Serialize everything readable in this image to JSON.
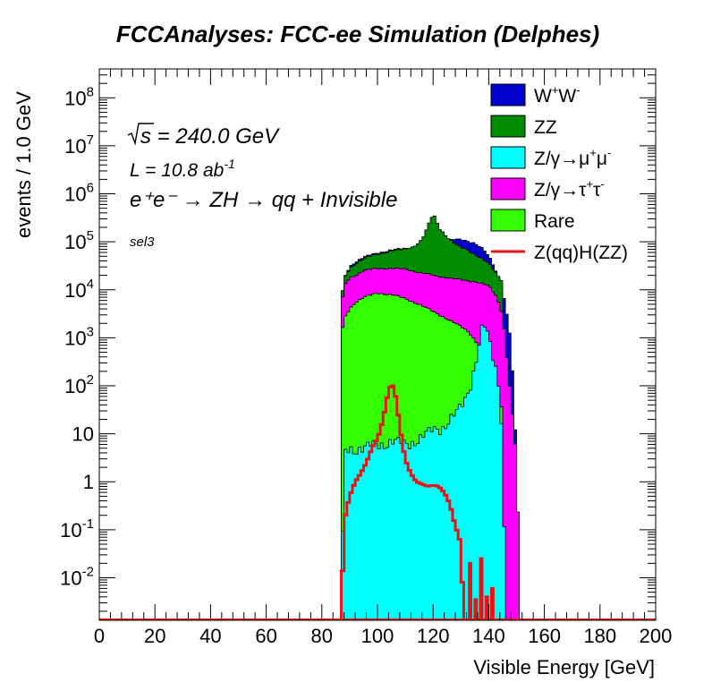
{
  "chart_data": {
    "type": "area",
    "title": "FCCAnalyses: FCC-ee Simulation (Delphes)",
    "xlabel": "Visible Energy [GeV]",
    "ylabel": "events / 1.0 GeV",
    "xlim": [
      0,
      200
    ],
    "ylim": [
      0.0013,
      400000000
    ],
    "ylog": true,
    "stacked": true,
    "legend_position": "top-right",
    "x_ticks": [
      "0",
      "20",
      "40",
      "60",
      "80",
      "100",
      "120",
      "140",
      "160",
      "180",
      "200"
    ],
    "y_ticks": [
      {
        "base": "10",
        "exp": "-2",
        "value": 0.01
      },
      {
        "base": "10",
        "exp": "-1",
        "value": 0.1
      },
      {
        "base": "1",
        "exp": "",
        "value": 1
      },
      {
        "base": "10",
        "exp": "",
        "value": 10
      },
      {
        "base": "10",
        "exp": "2",
        "value": 100
      },
      {
        "base": "10",
        "exp": "3",
        "value": 1000
      },
      {
        "base": "10",
        "exp": "4",
        "value": 10000
      },
      {
        "base": "10",
        "exp": "5",
        "value": 100000
      },
      {
        "base": "10",
        "exp": "6",
        "value": 1000000
      },
      {
        "base": "10",
        "exp": "7",
        "value": 10000000
      },
      {
        "base": "10",
        "exp": "8",
        "value": 100000000
      }
    ],
    "annotations": {
      "sqrt_s": "s = 240.0 GeV",
      "lumi": "L = 10.8 ab",
      "lumi_exp": "-1",
      "process": "e⁺e⁻ → ZH → qq + Invisible",
      "selection": "sel3"
    },
    "stack_totals": [
      {
        "name": "Rare",
        "color": "#33ff00",
        "x": [
          87,
          88,
          90,
          92,
          95,
          100,
          105,
          110,
          115,
          120,
          125,
          130,
          133,
          135,
          138,
          141,
          143,
          145,
          146
        ],
        "y": [
          1000,
          2500,
          4000,
          5500,
          7000,
          8500,
          8000,
          6500,
          5000,
          3500,
          2500,
          1700,
          1300,
          900,
          500,
          200,
          80,
          30,
          0
        ]
      },
      {
        "name": "Z/γ→τ⁺τ⁻",
        "color": "#ff00ff",
        "x": [
          87,
          88,
          90,
          92,
          95,
          100,
          105,
          110,
          115,
          120,
          125,
          130,
          135,
          140,
          143,
          145,
          147,
          150,
          152
        ],
        "y": [
          4000,
          12000,
          18000,
          20000,
          25000,
          28000,
          28000,
          27000,
          23000,
          20000,
          18000,
          16000,
          15000,
          12000,
          7000,
          3000,
          200,
          3,
          0
        ]
      },
      {
        "name": "ZZ",
        "color": "#008c00",
        "x": [
          87,
          88,
          90,
          92,
          95,
          100,
          105,
          110,
          113,
          116,
          118,
          119,
          120,
          121,
          122,
          124,
          126,
          128,
          130,
          132,
          135,
          140,
          145
        ],
        "y": [
          5000,
          17000,
          28000,
          35000,
          45000,
          55000,
          65000,
          70000,
          80000,
          110000,
          200000,
          280000,
          380000,
          300000,
          200000,
          150000,
          110000,
          90000,
          75000,
          70000,
          55000,
          35000,
          15000
        ]
      },
      {
        "name": "W⁺W⁻",
        "color": "#0000cc",
        "x": [
          87,
          88,
          90,
          92,
          95,
          100,
          105,
          110,
          115,
          120,
          124,
          128,
          130,
          132,
          135,
          138,
          141,
          144,
          146,
          148,
          150,
          152
        ],
        "y": [
          5000,
          17000,
          30000,
          38000,
          48000,
          58000,
          68000,
          72000,
          82000,
          95000,
          105000,
          112000,
          110000,
          105000,
          95000,
          70000,
          40000,
          15000,
          5000,
          800,
          3,
          0
        ]
      }
    ],
    "mumu_area": {
      "name": "Z/γ→μ⁺μ⁻",
      "color": "#00ffff",
      "x": [
        87,
        88,
        90,
        95,
        100,
        105,
        110,
        115,
        118,
        120,
        122,
        124,
        126,
        128,
        130,
        132,
        134,
        136,
        137,
        138,
        139,
        140,
        141,
        142,
        143,
        144,
        145,
        146
      ],
      "y": [
        0.0013,
        4,
        5,
        5,
        6,
        7,
        6,
        8,
        10,
        12,
        13,
        15,
        20,
        25,
        35,
        60,
        150,
        500,
        1200,
        1800,
        1500,
        900,
        500,
        300,
        200,
        60,
        10,
        0.0013
      ]
    },
    "signal": {
      "name": "Z(qq)H(ZZ)",
      "color": "#ee1111",
      "x": [
        87,
        88,
        90,
        92,
        94,
        96,
        98,
        100,
        101,
        102,
        103,
        104,
        105,
        106,
        107,
        108,
        109,
        110,
        111,
        112,
        113,
        114,
        116,
        118,
        120,
        122,
        124,
        126,
        127,
        128,
        129,
        130,
        131
      ],
      "y": [
        0.0013,
        0.15,
        0.5,
        1.0,
        1.5,
        2.5,
        5,
        8,
        12,
        20,
        40,
        80,
        110,
        90,
        40,
        15,
        6,
        3,
        2.0,
        1.5,
        1.2,
        1.0,
        0.9,
        0.8,
        0.85,
        0.8,
        0.6,
        0.35,
        0.2,
        0.12,
        0.08,
        0.05,
        0.0013
      ]
    },
    "legend": [
      {
        "label": "W",
        "sup1": "+",
        "mid": "W",
        "sup2": "-",
        "rest": "",
        "color": "#0000cc",
        "kind": "box"
      },
      {
        "label": "ZZ",
        "sup1": "",
        "mid": "",
        "sup2": "",
        "rest": "",
        "color": "#008c00",
        "kind": "box"
      },
      {
        "label": "Z/γ→μ",
        "sup1": "+",
        "mid": "μ",
        "sup2": "-",
        "rest": "",
        "color": "#00ffff",
        "kind": "box"
      },
      {
        "label": "Z/γ→τ",
        "sup1": "+",
        "mid": "τ",
        "sup2": "-",
        "rest": "",
        "color": "#ff00ff",
        "kind": "box"
      },
      {
        "label": "Rare",
        "sup1": "",
        "mid": "",
        "sup2": "",
        "rest": "",
        "color": "#33ff00",
        "kind": "box"
      },
      {
        "label": "Z(qq)H(ZZ)",
        "sup1": "",
        "mid": "",
        "sup2": "",
        "rest": "",
        "color": "#ee1111",
        "kind": "line"
      }
    ]
  }
}
